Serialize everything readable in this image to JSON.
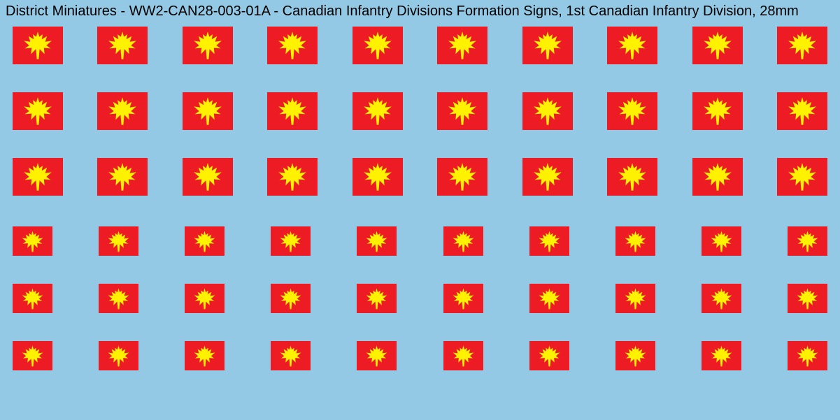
{
  "sheet": {
    "title": "District Miniatures - WW2-CAN28-003-01A - Canadian Infantry Divisions Formation Signs, 1st Canadian Infantry Division, 28mm",
    "background_color": "#93c9e5",
    "title_color": "#000000",
    "title_fontsize": 20,
    "patch": {
      "background_color": "#ed1c24",
      "leaf_color": "#fff200"
    },
    "grid": {
      "columns": 10,
      "rows": [
        {
          "patch_w": 72,
          "patch_h": 54,
          "leaf_w": 44,
          "leaf_h": 44,
          "row_gap_after": 40
        },
        {
          "patch_w": 72,
          "patch_h": 54,
          "leaf_w": 44,
          "leaf_h": 44,
          "row_gap_after": 40
        },
        {
          "patch_w": 72,
          "patch_h": 54,
          "leaf_w": 44,
          "leaf_h": 44,
          "row_gap_after": 44
        },
        {
          "patch_w": 57,
          "patch_h": 42,
          "leaf_w": 33,
          "leaf_h": 33,
          "row_gap_after": 40
        },
        {
          "patch_w": 57,
          "patch_h": 42,
          "leaf_w": 33,
          "leaf_h": 33,
          "row_gap_after": 40
        },
        {
          "patch_w": 57,
          "patch_h": 42,
          "leaf_w": 33,
          "leaf_h": 33,
          "row_gap_after": 0
        }
      ]
    }
  }
}
